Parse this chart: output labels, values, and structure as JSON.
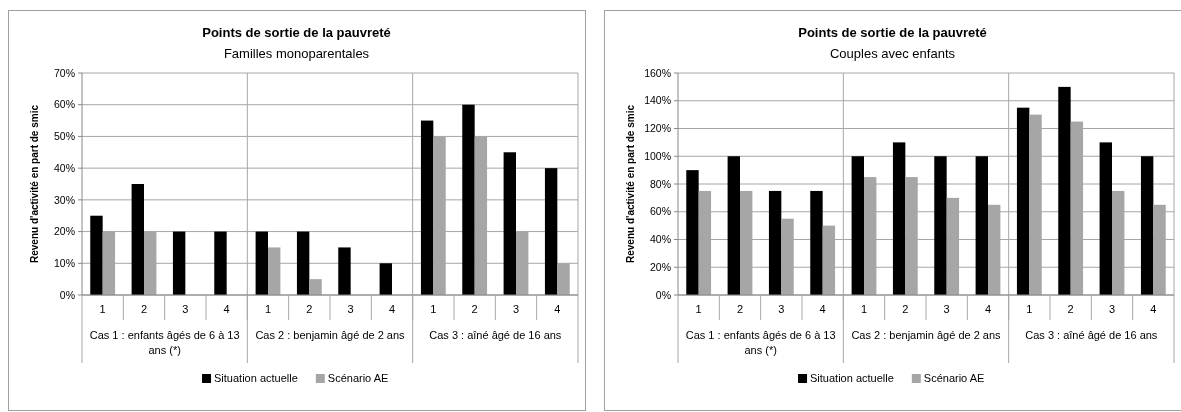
{
  "chart_data": [
    {
      "type": "bar",
      "title": "Points de sortie de la pauvreté",
      "subtitle": "Familles monoparentales",
      "ylabel": "Revenu d'activité en part de smic",
      "categories": [
        "1",
        "2",
        "3",
        "4",
        "1",
        "2",
        "3",
        "4",
        "1",
        "2",
        "3",
        "4"
      ],
      "series": [
        {
          "name": "Situation actuelle",
          "color": "#000000",
          "values": [
            25,
            35,
            20,
            20,
            20,
            20,
            15,
            10,
            55,
            60,
            45,
            40
          ]
        },
        {
          "name": "Scénario AE",
          "color": "#a6a6a6",
          "values": [
            20,
            20,
            0,
            0,
            15,
            5,
            0,
            0,
            50,
            50,
            20,
            10
          ]
        }
      ],
      "annotations": [
        "Cas 1 : enfants âgés de 6 à 13 ans (*)",
        "Cas 2 : benjamin âgé de 2 ans",
        "Cas 3 : aîné âgé de 16 ans"
      ],
      "ylim": [
        0,
        70
      ],
      "yticks": [
        {
          "value": 0,
          "label": "0%"
        },
        {
          "value": 10,
          "label": "10%"
        },
        {
          "value": 20,
          "label": "20%"
        },
        {
          "value": 30,
          "label": "30%"
        },
        {
          "value": 40,
          "label": "40%"
        },
        {
          "value": 50,
          "label": "50%"
        },
        {
          "value": 60,
          "label": "60%"
        },
        {
          "value": 70,
          "label": "70%"
        }
      ],
      "grid": "y",
      "legend": "bottom"
    },
    {
      "type": "bar",
      "title": "Points de sortie de la pauvreté",
      "subtitle": "Couples avec enfants",
      "ylabel": "Revenu d'activité en part de smic",
      "categories": [
        "1",
        "2",
        "3",
        "4",
        "1",
        "2",
        "3",
        "4",
        "1",
        "2",
        "3",
        "4"
      ],
      "series": [
        {
          "name": "Situation actuelle",
          "color": "#000000",
          "values": [
            90,
            100,
            75,
            75,
            100,
            110,
            100,
            100,
            135,
            150,
            110,
            100
          ]
        },
        {
          "name": "Scénario AE",
          "color": "#a6a6a6",
          "values": [
            75,
            75,
            55,
            50,
            85,
            85,
            70,
            65,
            130,
            125,
            75,
            65
          ]
        }
      ],
      "annotations": [
        "Cas 1 : enfants âgés de 6 à 13 ans (*)",
        "Cas 2 : benjamin âgé de 2 ans",
        "Cas 3 : aîné âgé de 16 ans"
      ],
      "ylim": [
        0,
        160
      ],
      "yticks": [
        {
          "value": 0,
          "label": "0%"
        },
        {
          "value": 20,
          "label": "20%"
        },
        {
          "value": 40,
          "label": "40%"
        },
        {
          "value": 60,
          "label": "60%"
        },
        {
          "value": 80,
          "label": "80%"
        },
        {
          "value": 100,
          "label": "100%"
        },
        {
          "value": 120,
          "label": "120%"
        },
        {
          "value": 140,
          "label": "140%"
        },
        {
          "value": 160,
          "label": "160%"
        }
      ],
      "grid": "y",
      "legend": "bottom"
    }
  ]
}
